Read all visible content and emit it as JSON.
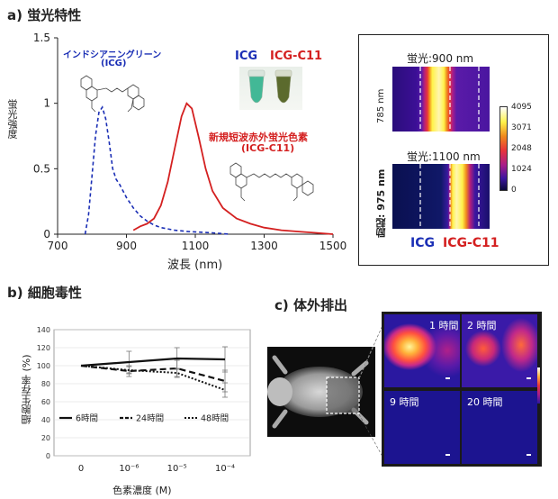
{
  "panel_a": {
    "heading": "a) 蛍光特性",
    "x_label": "波長 (nm)",
    "y_label": "蛍光強度",
    "icg_name": "インドシアニングリーン",
    "icg_abbr": "(ICG)",
    "new_dye_name": "新規短波赤外蛍光色素",
    "new_dye_abbr": "(ICG-C11)",
    "vial_label_icg": "ICG",
    "vial_label_new": "ICG-C11",
    "colors": {
      "icg": "#1a2eb5",
      "new": "#d42020"
    },
    "imaging": {
      "title_top": "蛍光:900 nm",
      "title_bottom": "蛍光:1100 nm",
      "row_top": "785 nm",
      "row_bottom": "励起: 975 nm",
      "label_icg": "ICG",
      "label_new": "ICG-C11",
      "colorbar_ticks": [
        "4095",
        "3071",
        "2048",
        "1024",
        "0"
      ]
    }
  },
  "chart_data": [
    {
      "type": "line",
      "title": "",
      "xlabel": "波長 (nm)",
      "ylabel": "蛍光強度",
      "xlim": [
        700,
        1500
      ],
      "ylim": [
        0,
        1.5
      ],
      "x_ticks": [
        "700",
        "900",
        "1100",
        "1300",
        "1500"
      ],
      "y_ticks": [
        "0",
        "0.5",
        "1",
        "1.5"
      ],
      "series": [
        {
          "name": "ICG",
          "style": "dashed",
          "x": [
            780,
            790,
            800,
            810,
            820,
            830,
            840,
            850,
            860,
            870,
            880,
            890,
            900,
            920,
            940,
            960,
            980,
            1000,
            1040,
            1080,
            1150,
            1200
          ],
          "y": [
            0.0,
            0.15,
            0.45,
            0.75,
            0.93,
            0.97,
            0.88,
            0.7,
            0.5,
            0.42,
            0.38,
            0.33,
            0.28,
            0.2,
            0.14,
            0.1,
            0.07,
            0.05,
            0.03,
            0.02,
            0.01,
            0.0
          ]
        },
        {
          "name": "ICG-C11",
          "style": "solid",
          "x": [
            920,
            940,
            960,
            980,
            1000,
            1020,
            1040,
            1060,
            1075,
            1090,
            1110,
            1130,
            1150,
            1180,
            1220,
            1260,
            1300,
            1350,
            1400,
            1450,
            1500
          ],
          "y": [
            0.03,
            0.06,
            0.08,
            0.12,
            0.22,
            0.4,
            0.65,
            0.9,
            1.0,
            0.96,
            0.74,
            0.5,
            0.33,
            0.2,
            0.12,
            0.08,
            0.05,
            0.03,
            0.02,
            0.01,
            0.0
          ]
        }
      ]
    },
    {
      "type": "line",
      "title": "",
      "xlabel": "色素濃度 (M)",
      "ylabel": "細胞生存率 (%)",
      "categories": [
        "0",
        "10⁻⁶",
        "10⁻⁵",
        "10⁻⁴"
      ],
      "ylim": [
        0,
        140
      ],
      "y_ticks": [
        "0",
        "20",
        "40",
        "60",
        "80",
        "100",
        "120",
        "140"
      ],
      "series": [
        {
          "name": "6時間",
          "style": "solid",
          "values": [
            100,
            104,
            108,
            107
          ],
          "err": [
            0,
            12,
            12,
            14
          ]
        },
        {
          "name": "24時間",
          "style": "dashed",
          "values": [
            100,
            94,
            97,
            83
          ],
          "err": [
            0,
            6,
            9,
            12
          ]
        },
        {
          "name": "48時間",
          "style": "dotted",
          "values": [
            100,
            95,
            92,
            73
          ],
          "err": [
            0,
            4,
            5,
            8
          ]
        }
      ]
    }
  ],
  "panel_b": {
    "heading": "b) 細胞毒性"
  },
  "panel_c": {
    "heading": "c) 体外排出",
    "time_labels": [
      "1 時間",
      "2 時間",
      "9 時間",
      "20 時間"
    ]
  }
}
